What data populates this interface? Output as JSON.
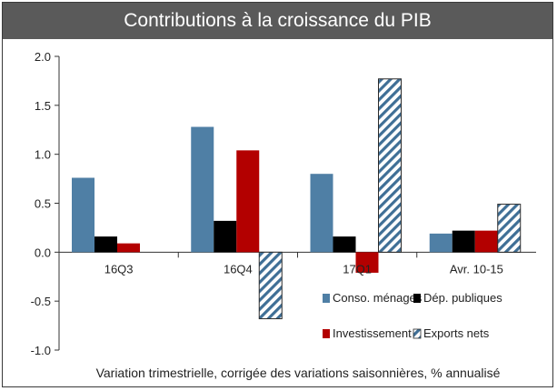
{
  "chart_data": {
    "type": "bar",
    "title": "Contributions à la croissance du PIB",
    "subtitle": "Variation trimestrielle, corrigée des variations saisonnières, % annualisé",
    "categories": [
      "16Q3",
      "16Q4",
      "17Q1",
      "Avr. 10-15"
    ],
    "series": [
      {
        "name": "Conso. ménages",
        "values": [
          0.76,
          1.28,
          0.8,
          0.19
        ],
        "color": "#4f7fa5",
        "pattern": "solid"
      },
      {
        "name": "Dép. publiques",
        "values": [
          0.16,
          0.32,
          0.16,
          0.22
        ],
        "color": "#000000",
        "pattern": "solid"
      },
      {
        "name": "Investissement",
        "values": [
          0.09,
          1.04,
          -0.21,
          0.22
        ],
        "color": "#b30000",
        "pattern": "solid"
      },
      {
        "name": "Exports nets",
        "values": [
          null,
          -0.68,
          1.77,
          0.49
        ],
        "color": "#3f6f96",
        "pattern": "hatched"
      }
    ],
    "yticks": [
      "2.0",
      "1.5",
      "1.0",
      "0.5",
      "0.0",
      "-0.5",
      "-1.0"
    ],
    "ylim": [
      -1.0,
      2.0
    ],
    "legend_position": "bottom-right",
    "grid": false
  }
}
